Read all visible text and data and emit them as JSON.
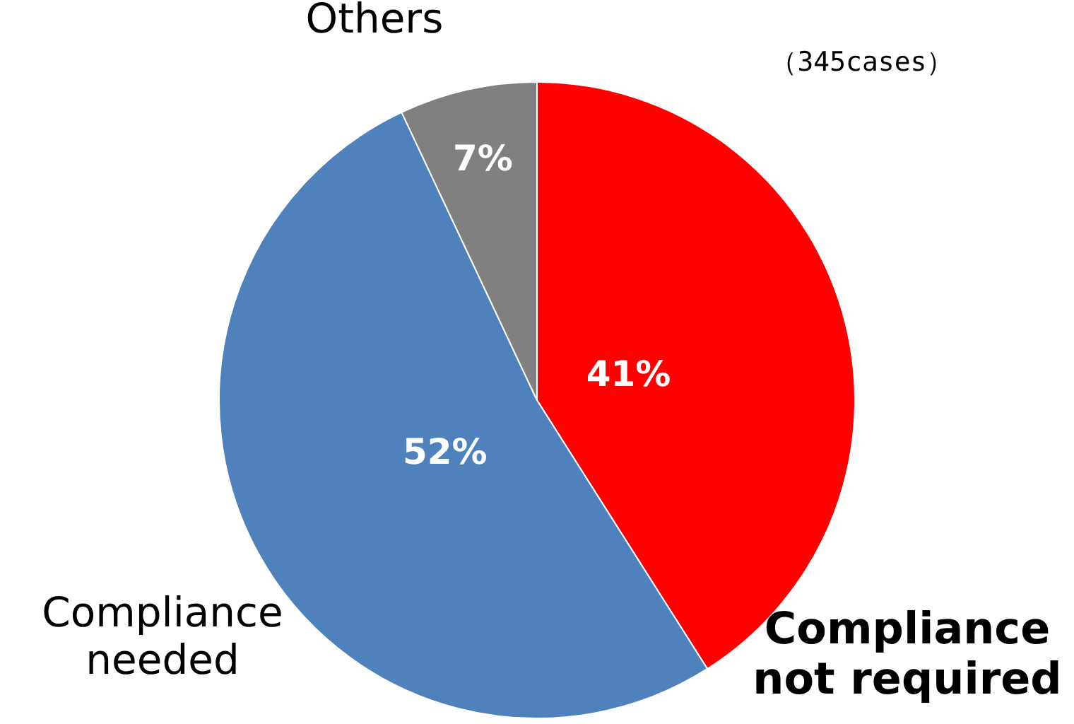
{
  "chart_data": {
    "type": "pie",
    "subtitle": "（345cases）",
    "categories": [
      "Compliance not required",
      "Compliance needed",
      "Others"
    ],
    "values": [
      41,
      52,
      7
    ],
    "colors": [
      "#ff0000",
      "#4f81bd",
      "#808080"
    ],
    "value_labels": [
      "41%",
      "52%",
      "7%"
    ]
  }
}
